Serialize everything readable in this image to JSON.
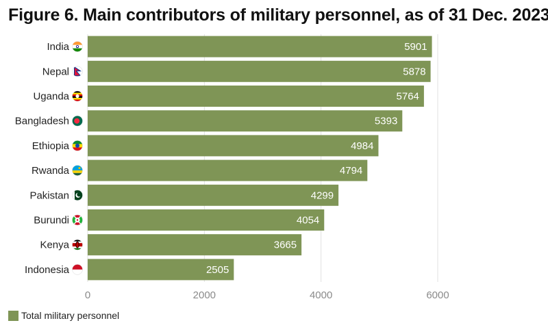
{
  "title": "Figure 6. Main contributors of military personnel, as of 31 Dec. 2023",
  "colors": {
    "bar": "#7f9556",
    "grid": "#e0e0e0",
    "tick_text": "#8a8a8a",
    "label_text": "#222222",
    "value_text": "#ffffff"
  },
  "chart_data": {
    "type": "bar",
    "orientation": "horizontal",
    "categories": [
      "India",
      "Nepal",
      "Uganda",
      "Bangladesh",
      "Ethiopia",
      "Rwanda",
      "Pakistan",
      "Burundi",
      "Kenya",
      "Indonesia"
    ],
    "series": [
      {
        "name": "Total military personnel",
        "values": [
          5901,
          5878,
          5764,
          5393,
          4984,
          4794,
          4299,
          4054,
          3665,
          2505
        ]
      }
    ],
    "xlim": [
      0,
      6000
    ],
    "xticks": [
      0,
      2000,
      4000,
      6000
    ],
    "grid": true,
    "legend_position": "bottom-left",
    "category_icons": [
      "india-flag-icon",
      "nepal-flag-icon",
      "uganda-flag-icon",
      "bangladesh-flag-icon",
      "ethiopia-flag-icon",
      "rwanda-flag-icon",
      "pakistan-flag-icon",
      "burundi-flag-icon",
      "kenya-flag-icon",
      "indonesia-flag-icon"
    ]
  },
  "legend": {
    "label": "Total military personnel"
  }
}
